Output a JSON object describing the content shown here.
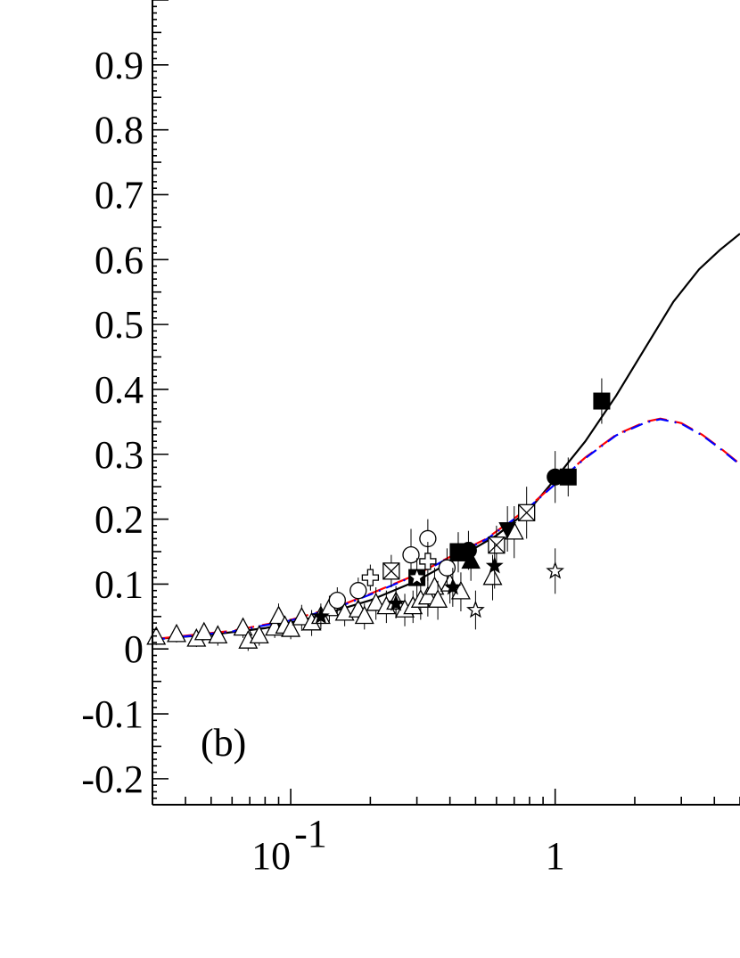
{
  "chart_data": {
    "type": "scatter",
    "title": "",
    "xlabel": "",
    "ylabel": "",
    "panel_label": "(b)",
    "x_scale": "log",
    "xlim": [
      0.03,
      5.0
    ],
    "ylim": [
      -0.24,
      1.0
    ],
    "grid": false,
    "x_tick_labels": [
      {
        "value": 0.1,
        "base": "10",
        "exponent": "-1"
      },
      {
        "value": 1,
        "base": "1",
        "exponent": ""
      }
    ],
    "y_tick_labels": [
      {
        "value": -0.2,
        "text": "-0.2"
      },
      {
        "value": -0.1,
        "text": "-0.1"
      },
      {
        "value": 0.0,
        "text": "0"
      },
      {
        "value": 0.1,
        "text": "0.1"
      },
      {
        "value": 0.2,
        "text": "0.2"
      },
      {
        "value": 0.3,
        "text": "0.3"
      },
      {
        "value": 0.4,
        "text": "0.4"
      },
      {
        "value": 0.5,
        "text": "0.5"
      },
      {
        "value": 0.6,
        "text": "0.6"
      },
      {
        "value": 0.7,
        "text": "0.7"
      },
      {
        "value": 0.8,
        "text": "0.8"
      },
      {
        "value": 0.9,
        "text": "0.9"
      }
    ],
    "curves": [
      {
        "style": "solid",
        "color": "#000000",
        "points": [
          [
            0.03,
            0.015
          ],
          [
            0.05,
            0.022
          ],
          [
            0.08,
            0.032
          ],
          [
            0.12,
            0.048
          ],
          [
            0.2,
            0.075
          ],
          [
            0.3,
            0.105
          ],
          [
            0.45,
            0.145
          ],
          [
            0.6,
            0.175
          ],
          [
            0.8,
            0.215
          ],
          [
            1.0,
            0.262
          ],
          [
            1.3,
            0.32
          ],
          [
            1.7,
            0.39
          ],
          [
            2.2,
            0.465
          ],
          [
            2.8,
            0.535
          ],
          [
            3.5,
            0.585
          ],
          [
            4.2,
            0.615
          ],
          [
            5.0,
            0.64
          ]
        ]
      },
      {
        "style": "dashed",
        "color": "#ff0000",
        "points": [
          [
            0.03,
            0.015
          ],
          [
            0.06,
            0.028
          ],
          [
            0.1,
            0.045
          ],
          [
            0.15,
            0.065
          ],
          [
            0.2,
            0.085
          ],
          [
            0.3,
            0.115
          ],
          [
            0.4,
            0.142
          ],
          [
            0.55,
            0.17
          ],
          [
            0.75,
            0.21
          ],
          [
            1.0,
            0.255
          ],
          [
            1.3,
            0.295
          ],
          [
            1.7,
            0.33
          ],
          [
            2.2,
            0.35
          ],
          [
            2.5,
            0.355
          ],
          [
            3.0,
            0.348
          ],
          [
            3.6,
            0.33
          ],
          [
            4.2,
            0.31
          ],
          [
            5.0,
            0.285
          ]
        ]
      },
      {
        "style": "dash-dot",
        "color": "#0000ff",
        "points": [
          [
            0.03,
            0.014
          ],
          [
            0.06,
            0.027
          ],
          [
            0.1,
            0.044
          ],
          [
            0.15,
            0.064
          ],
          [
            0.2,
            0.084
          ],
          [
            0.3,
            0.114
          ],
          [
            0.4,
            0.141
          ],
          [
            0.55,
            0.169
          ],
          [
            0.75,
            0.209
          ],
          [
            1.0,
            0.254
          ],
          [
            1.3,
            0.294
          ],
          [
            1.7,
            0.329
          ],
          [
            2.2,
            0.349
          ],
          [
            2.5,
            0.354
          ],
          [
            3.0,
            0.347
          ],
          [
            3.6,
            0.329
          ],
          [
            4.2,
            0.309
          ],
          [
            5.0,
            0.284
          ]
        ]
      }
    ],
    "points": [
      {
        "marker": "triangle-open",
        "x": 0.031,
        "y": 0.018,
        "err": 0.012
      },
      {
        "marker": "triangle-open",
        "x": 0.037,
        "y": 0.022,
        "err": 0.012
      },
      {
        "marker": "triangle-open",
        "x": 0.044,
        "y": 0.015,
        "err": 0.012
      },
      {
        "marker": "triangle-open",
        "x": 0.047,
        "y": 0.025,
        "err": 0.012
      },
      {
        "marker": "triangle-open",
        "x": 0.053,
        "y": 0.02,
        "err": 0.015
      },
      {
        "marker": "triangle-open",
        "x": 0.066,
        "y": 0.032,
        "err": 0.015
      },
      {
        "marker": "triangle-open",
        "x": 0.069,
        "y": 0.012,
        "err": 0.015
      },
      {
        "marker": "triangle-open",
        "x": 0.076,
        "y": 0.02,
        "err": 0.015
      },
      {
        "marker": "triangle-open",
        "x": 0.087,
        "y": 0.032,
        "err": 0.015
      },
      {
        "marker": "triangle-open",
        "x": 0.09,
        "y": 0.05,
        "err": 0.02
      },
      {
        "marker": "triangle-open",
        "x": 0.095,
        "y": 0.035,
        "err": 0.015
      },
      {
        "marker": "triangle-open",
        "x": 0.1,
        "y": 0.03,
        "err": 0.015
      },
      {
        "marker": "triangle-open",
        "x": 0.11,
        "y": 0.048,
        "err": 0.02
      },
      {
        "marker": "triangle-open",
        "x": 0.12,
        "y": 0.04,
        "err": 0.02
      },
      {
        "marker": "triangle-open",
        "x": 0.13,
        "y": 0.05,
        "err": 0.02
      },
      {
        "marker": "triangle-open",
        "x": 0.14,
        "y": 0.062,
        "err": 0.02
      },
      {
        "marker": "triangle-open",
        "x": 0.16,
        "y": 0.055,
        "err": 0.02
      },
      {
        "marker": "triangle-open",
        "x": 0.18,
        "y": 0.06,
        "err": 0.02
      },
      {
        "marker": "triangle-open",
        "x": 0.19,
        "y": 0.05,
        "err": 0.02
      },
      {
        "marker": "triangle-open",
        "x": 0.21,
        "y": 0.07,
        "err": 0.025
      },
      {
        "marker": "triangle-open",
        "x": 0.23,
        "y": 0.065,
        "err": 0.025
      },
      {
        "marker": "triangle-open",
        "x": 0.25,
        "y": 0.072,
        "err": 0.025
      },
      {
        "marker": "triangle-open",
        "x": 0.27,
        "y": 0.06,
        "err": 0.025
      },
      {
        "marker": "triangle-open",
        "x": 0.29,
        "y": 0.065,
        "err": 0.025
      },
      {
        "marker": "triangle-open",
        "x": 0.31,
        "y": 0.075,
        "err": 0.03
      },
      {
        "marker": "triangle-open",
        "x": 0.33,
        "y": 0.08,
        "err": 0.03
      },
      {
        "marker": "triangle-open",
        "x": 0.35,
        "y": 0.095,
        "err": 0.03
      },
      {
        "marker": "triangle-open",
        "x": 0.36,
        "y": 0.075,
        "err": 0.03
      },
      {
        "marker": "triangle-open",
        "x": 0.4,
        "y": 0.1,
        "err": 0.03
      },
      {
        "marker": "triangle-open",
        "x": 0.44,
        "y": 0.088,
        "err": 0.03
      },
      {
        "marker": "triangle-open",
        "x": 0.58,
        "y": 0.11,
        "err": 0.035
      },
      {
        "marker": "triangle-open",
        "x": 0.7,
        "y": 0.18,
        "err": 0.04
      },
      {
        "marker": "circle-open",
        "x": 0.15,
        "y": 0.075,
        "err": 0.02
      },
      {
        "marker": "circle-open",
        "x": 0.18,
        "y": 0.09,
        "err": 0.02
      },
      {
        "marker": "circle-open",
        "x": 0.285,
        "y": 0.145,
        "err": 0.04
      },
      {
        "marker": "circle-open",
        "x": 0.33,
        "y": 0.17,
        "err": 0.03
      },
      {
        "marker": "circle-open",
        "x": 0.39,
        "y": 0.125,
        "err": 0.03
      },
      {
        "marker": "cross-open",
        "x": 0.2,
        "y": 0.11,
        "err": 0.02
      },
      {
        "marker": "cross-open",
        "x": 0.33,
        "y": 0.135,
        "err": 0.03
      },
      {
        "marker": "box-x",
        "x": 0.24,
        "y": 0.12,
        "err": 0.025
      },
      {
        "marker": "box-x",
        "x": 0.6,
        "y": 0.16,
        "err": 0.03
      },
      {
        "marker": "box-x",
        "x": 0.78,
        "y": 0.21,
        "err": 0.04
      },
      {
        "marker": "box-star",
        "x": 0.3,
        "y": 0.11,
        "err": 0.03
      },
      {
        "marker": "box-star",
        "x": 0.43,
        "y": 0.148,
        "err": 0.03
      },
      {
        "marker": "star-filled",
        "x": 0.13,
        "y": 0.05,
        "err": 0.015
      },
      {
        "marker": "star-filled",
        "x": 0.25,
        "y": 0.07,
        "err": 0.02
      },
      {
        "marker": "star-filled",
        "x": 0.41,
        "y": 0.095,
        "err": 0.03
      },
      {
        "marker": "star-filled",
        "x": 0.59,
        "y": 0.128,
        "err": 0.035
      },
      {
        "marker": "star-open",
        "x": 0.5,
        "y": 0.06,
        "err": 0.03
      },
      {
        "marker": "star-open",
        "x": 1.0,
        "y": 0.12,
        "err": 0.035
      },
      {
        "marker": "square-filled",
        "x": 0.43,
        "y": 0.15,
        "err": 0.03
      },
      {
        "marker": "square-filled",
        "x": 1.12,
        "y": 0.265,
        "err": 0.03
      },
      {
        "marker": "square-filled",
        "x": 1.5,
        "y": 0.382,
        "err": 0.035
      },
      {
        "marker": "circle-filled",
        "x": 0.47,
        "y": 0.152,
        "err": 0.03
      },
      {
        "marker": "circle-filled",
        "x": 1.0,
        "y": 0.265,
        "err": 0.04
      },
      {
        "marker": "triangle-filled",
        "x": 0.48,
        "y": 0.135,
        "err": 0.03
      },
      {
        "marker": "triangle-down-filled",
        "x": 0.66,
        "y": 0.185,
        "err": 0.035
      }
    ]
  }
}
